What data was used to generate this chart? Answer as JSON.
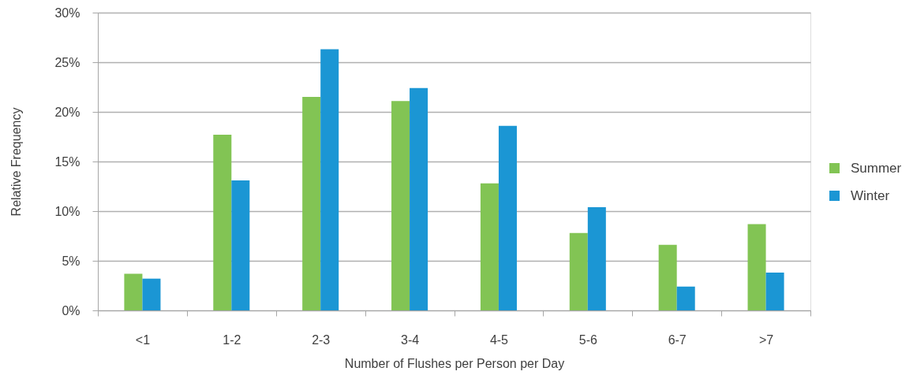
{
  "chart_data": {
    "type": "bar",
    "xlabel": "Number of Flushes per Person per Day",
    "ylabel": "Relative Frequency",
    "categories": [
      "<1",
      "1-2",
      "2-3",
      "3-4",
      "4-5",
      "5-6",
      "6-7",
      ">7"
    ],
    "series": [
      {
        "name": "Summer",
        "color": "#82c454",
        "values": [
          3.7,
          17.7,
          21.5,
          21.1,
          12.8,
          7.8,
          6.6,
          8.7
        ]
      },
      {
        "name": "Winter",
        "color": "#1b96d4",
        "values": [
          3.2,
          13.1,
          26.3,
          22.4,
          18.6,
          10.4,
          2.4,
          3.8
        ]
      }
    ],
    "ylim": [
      0,
      30
    ],
    "yticks": [
      {
        "value": 0,
        "label": "0%"
      },
      {
        "value": 5,
        "label": "5%"
      },
      {
        "value": 10,
        "label": "10%"
      },
      {
        "value": 15,
        "label": "15%"
      },
      {
        "value": 20,
        "label": "20%"
      },
      {
        "value": 25,
        "label": "25%"
      },
      {
        "value": 30,
        "label": "30%"
      }
    ],
    "grid": "y",
    "legend": "right"
  }
}
